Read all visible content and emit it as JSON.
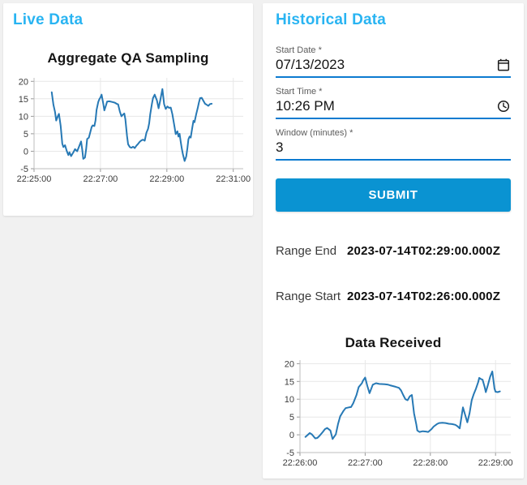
{
  "colors": {
    "accent_title": "#29b4f2",
    "primary_button": "#0a93d2",
    "input_underline": "#0c7bd0",
    "chart_line": "#2779b5",
    "page_background": "#f1f1f1"
  },
  "live_panel": {
    "title": "Live Data"
  },
  "historical_panel": {
    "title": "Historical Data",
    "form": {
      "fields": [
        {
          "label": "Start Date *",
          "value": "07/13/2023",
          "icon": "calendar-icon"
        },
        {
          "label": "Start Time *",
          "value": "10:26 PM",
          "icon": "clock-icon"
        },
        {
          "label": "Window (minutes) *",
          "value": "3",
          "icon": ""
        }
      ],
      "submit_label": "SUBMIT"
    },
    "results": [
      {
        "label": "Range End",
        "value": "2023-07-14T02:29:00.000Z"
      },
      {
        "label": "Range Start",
        "value": "2023-07-14T02:26:00.000Z"
      }
    ]
  },
  "chart_data": [
    {
      "type": "line",
      "title": "Aggregate QA Sampling",
      "xlabel": "",
      "ylabel": "",
      "x_origin": "22:25:00",
      "xlim": [
        0,
        378
      ],
      "ylim": [
        -5,
        21
      ],
      "grid": true,
      "legend": "none",
      "x_ticks": [
        {
          "t": 0,
          "label": "22:25:00"
        },
        {
          "t": 120,
          "label": "22:27:00"
        },
        {
          "t": 240,
          "label": "22:29:00"
        },
        {
          "t": 360,
          "label": "22:31:00"
        }
      ],
      "y_ticks": [
        -5,
        0,
        5,
        10,
        15,
        20
      ],
      "line_color": "#2779b5",
      "points": [
        [
          32,
          16.9
        ],
        [
          35,
          13.3
        ],
        [
          38,
          11.2
        ],
        [
          40,
          8.8
        ],
        [
          43,
          10.0
        ],
        [
          45,
          10.7
        ],
        [
          48,
          7.3
        ],
        [
          51,
          2.2
        ],
        [
          53,
          1.2
        ],
        [
          56,
          1.7
        ],
        [
          59,
          0.1
        ],
        [
          62,
          -1.1
        ],
        [
          64,
          -0.3
        ],
        [
          67,
          -1.4
        ],
        [
          71,
          -0.3
        ],
        [
          74,
          0.6
        ],
        [
          78,
          0.0
        ],
        [
          81,
          1.2
        ],
        [
          85,
          2.8
        ],
        [
          87,
          0.5
        ],
        [
          89,
          -2.2
        ],
        [
          92,
          -1.8
        ],
        [
          94,
          0.5
        ],
        [
          96,
          3.5
        ],
        [
          99,
          3.9
        ],
        [
          104,
          6.9
        ],
        [
          106,
          7.4
        ],
        [
          109,
          7.2
        ],
        [
          111,
          8.8
        ],
        [
          113,
          11.8
        ],
        [
          116,
          14.1
        ],
        [
          118,
          14.9
        ],
        [
          120,
          15.4
        ],
        [
          122,
          16.2
        ],
        [
          125,
          13.7
        ],
        [
          127,
          11.7
        ],
        [
          130,
          13.1
        ],
        [
          132,
          14.2
        ],
        [
          136,
          14.3
        ],
        [
          141,
          14.1
        ],
        [
          146,
          13.9
        ],
        [
          149,
          13.6
        ],
        [
          152,
          13.4
        ],
        [
          155,
          11.4
        ],
        [
          158,
          10.0
        ],
        [
          160,
          10.4
        ],
        [
          163,
          10.8
        ],
        [
          165,
          9.2
        ],
        [
          168,
          4.3
        ],
        [
          170,
          2.0
        ],
        [
          173,
          1.2
        ],
        [
          176,
          1.0
        ],
        [
          179,
          1.3
        ],
        [
          182,
          0.9
        ],
        [
          185,
          1.6
        ],
        [
          188,
          2.1
        ],
        [
          191,
          2.7
        ],
        [
          194,
          3.1
        ],
        [
          197,
          3.3
        ],
        [
          200,
          3.0
        ],
        [
          203,
          5.3
        ],
        [
          206,
          6.4
        ],
        [
          208,
          8.0
        ],
        [
          210,
          10.6
        ],
        [
          213,
          13.6
        ],
        [
          215,
          15.2
        ],
        [
          218,
          16.2
        ],
        [
          222,
          14.6
        ],
        [
          225,
          12.3
        ],
        [
          228,
          14.5
        ],
        [
          232,
          17.8
        ],
        [
          235,
          13.5
        ],
        [
          238,
          12.1
        ],
        [
          241,
          12.8
        ],
        [
          244,
          12.4
        ],
        [
          247,
          12.5
        ],
        [
          250,
          10.6
        ],
        [
          252,
          8.7
        ],
        [
          254,
          6.8
        ],
        [
          256,
          4.9
        ],
        [
          259,
          5.7
        ],
        [
          261,
          4.2
        ],
        [
          263,
          5.0
        ],
        [
          265,
          2.7
        ],
        [
          267,
          0.8
        ],
        [
          269,
          -0.9
        ],
        [
          272,
          -2.8
        ],
        [
          275,
          -1.5
        ],
        [
          277,
          0.8
        ],
        [
          279,
          3.4
        ],
        [
          281,
          4.2
        ],
        [
          283,
          3.9
        ],
        [
          286,
          6.8
        ],
        [
          288,
          8.7
        ],
        [
          290,
          8.3
        ],
        [
          293,
          10.6
        ],
        [
          296,
          12.5
        ],
        [
          298,
          14.0
        ],
        [
          300,
          15.2
        ],
        [
          303,
          15.3
        ],
        [
          306,
          14.4
        ],
        [
          309,
          13.6
        ],
        [
          312,
          13.3
        ],
        [
          315,
          13.0
        ],
        [
          318,
          13.5
        ],
        [
          321,
          13.6
        ]
      ]
    },
    {
      "type": "line",
      "title": "Data Received",
      "xlabel": "",
      "ylabel": "",
      "x_origin": "22:26:00",
      "xlim": [
        0,
        194
      ],
      "ylim": [
        -5,
        21
      ],
      "grid": true,
      "legend": "none",
      "x_ticks": [
        {
          "t": 0,
          "label": "22:26:00"
        },
        {
          "t": 60,
          "label": "22:27:00"
        },
        {
          "t": 120,
          "label": "22:28:00"
        },
        {
          "t": 180,
          "label": "22:29:00"
        }
      ],
      "y_ticks": [
        -5,
        0,
        5,
        10,
        15,
        20
      ],
      "line_color": "#2779b5",
      "points": [
        [
          5,
          -0.6
        ],
        [
          9,
          0.5
        ],
        [
          11,
          0.1
        ],
        [
          14,
          -1.0
        ],
        [
          16,
          -0.9
        ],
        [
          18,
          -0.3
        ],
        [
          21,
          0.8
        ],
        [
          23,
          1.6
        ],
        [
          25,
          1.9
        ],
        [
          28,
          1.2
        ],
        [
          30,
          -1.2
        ],
        [
          33,
          0.1
        ],
        [
          35,
          3.0
        ],
        [
          37,
          5.2
        ],
        [
          40,
          6.7
        ],
        [
          42,
          7.5
        ],
        [
          45,
          7.7
        ],
        [
          47,
          7.8
        ],
        [
          49,
          8.9
        ],
        [
          52,
          11.2
        ],
        [
          54,
          13.4
        ],
        [
          57,
          14.5
        ],
        [
          58,
          15.2
        ],
        [
          60,
          16.1
        ],
        [
          62,
          13.7
        ],
        [
          64,
          11.7
        ],
        [
          67,
          14.1
        ],
        [
          70,
          14.5
        ],
        [
          73,
          14.3
        ],
        [
          78,
          14.2
        ],
        [
          81,
          14.1
        ],
        [
          83,
          13.9
        ],
        [
          88,
          13.5
        ],
        [
          91,
          13.2
        ],
        [
          93,
          12.5
        ],
        [
          95,
          11.2
        ],
        [
          97,
          10.0
        ],
        [
          99,
          9.7
        ],
        [
          101,
          10.8
        ],
        [
          103,
          11.2
        ],
        [
          105,
          6.0
        ],
        [
          107,
          3.0
        ],
        [
          108,
          1.2
        ],
        [
          110,
          0.8
        ],
        [
          113,
          1.0
        ],
        [
          116,
          0.9
        ],
        [
          118,
          0.8
        ],
        [
          121,
          1.6
        ],
        [
          123,
          2.3
        ],
        [
          126,
          3.0
        ],
        [
          128,
          3.3
        ],
        [
          131,
          3.4
        ],
        [
          134,
          3.3
        ],
        [
          137,
          3.1
        ],
        [
          140,
          3.0
        ],
        [
          143,
          2.8
        ],
        [
          145,
          2.4
        ],
        [
          147,
          1.8
        ],
        [
          150,
          7.7
        ],
        [
          152,
          5.6
        ],
        [
          154,
          3.5
        ],
        [
          156,
          6.0
        ],
        [
          158,
          9.7
        ],
        [
          160,
          11.5
        ],
        [
          162,
          13.0
        ],
        [
          164,
          14.8
        ],
        [
          165,
          16.0
        ],
        [
          167,
          15.6
        ],
        [
          168,
          15.5
        ],
        [
          170,
          13.4
        ],
        [
          171,
          12.0
        ],
        [
          173,
          14.1
        ],
        [
          175,
          16.3
        ],
        [
          177,
          17.8
        ],
        [
          179,
          13.0
        ],
        [
          180,
          12.1
        ],
        [
          182,
          12.0
        ],
        [
          184,
          12.2
        ]
      ]
    }
  ]
}
